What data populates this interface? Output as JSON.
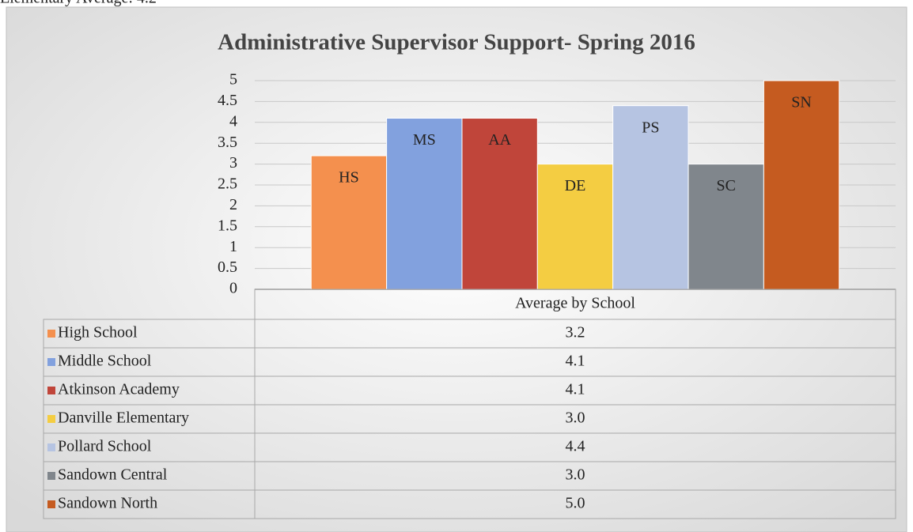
{
  "header_text": "Elementary Average: 4.2",
  "chart_data": {
    "type": "bar",
    "title": "Administrative Supervisor Support- Spring 2016",
    "categories": [
      "Average by School"
    ],
    "series": [
      {
        "name": "High School",
        "short_name": "HS",
        "color": "#f4904e",
        "values": [
          3.2
        ],
        "value_labels": [
          "3.2"
        ]
      },
      {
        "name": "Middle School",
        "short_name": "MS",
        "color": "#82a1de",
        "values": [
          4.1
        ],
        "value_labels": [
          "4.1"
        ]
      },
      {
        "name": "Atkinson Academy",
        "short_name": "AA",
        "color": "#c0453a",
        "values": [
          4.1
        ],
        "value_labels": [
          "4.1"
        ]
      },
      {
        "name": "Danville Elementary",
        "short_name": "DE",
        "color": "#f4cd42",
        "values": [
          3.0
        ],
        "value_labels": [
          "3.0"
        ]
      },
      {
        "name": "Pollard School",
        "short_name": "PS",
        "color": "#b6c4e2",
        "values": [
          4.4
        ],
        "value_labels": [
          "4.4"
        ]
      },
      {
        "name": "Sandown Central",
        "short_name": "SC",
        "color": "#80868c",
        "values": [
          3.0
        ],
        "value_labels": [
          "3.0"
        ]
      },
      {
        "name": "Sandown North",
        "short_name": "SN",
        "color": "#c55b20",
        "values": [
          5.0
        ],
        "value_labels": [
          "5.0"
        ]
      }
    ],
    "ylim": [
      0,
      5
    ],
    "yticks": [
      0,
      0.5,
      1,
      1.5,
      2,
      2.5,
      3,
      3.5,
      4,
      4.5,
      5
    ],
    "grid": true
  }
}
